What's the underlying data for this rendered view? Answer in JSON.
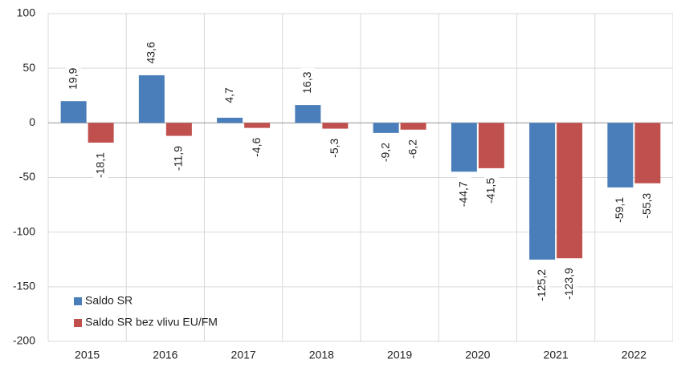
{
  "chart_data": {
    "type": "bar",
    "categories": [
      "2015",
      "2016",
      "2017",
      "2018",
      "2019",
      "2020",
      "2021",
      "2022"
    ],
    "series": [
      {
        "name": "Saldo SR",
        "color": "#4a7ebb",
        "values": [
          19.9,
          43.6,
          4.7,
          16.3,
          -9.2,
          -44.7,
          -125.2,
          -59.1
        ],
        "value_labels": [
          "19,9",
          "43,6",
          "4,7",
          "16,3",
          "-9,2",
          "-44,7",
          "-125,2",
          "-59,1"
        ]
      },
      {
        "name": "Saldo SR bez vlivu EU/FM",
        "color": "#c0504d",
        "values": [
          -18.1,
          -11.9,
          -4.6,
          -5.3,
          -6.2,
          -41.5,
          -123.9,
          -55.3
        ],
        "value_labels": [
          "-18,1",
          "-11,9",
          "-4,6",
          "-5,3",
          "-6,2",
          "-41,5",
          "-123,9",
          "-55,3"
        ]
      }
    ],
    "ylim": [
      -200,
      100
    ],
    "yticks": [
      -200,
      -150,
      -100,
      -50,
      0,
      50,
      100
    ],
    "grid": true,
    "legend": "lower left"
  }
}
